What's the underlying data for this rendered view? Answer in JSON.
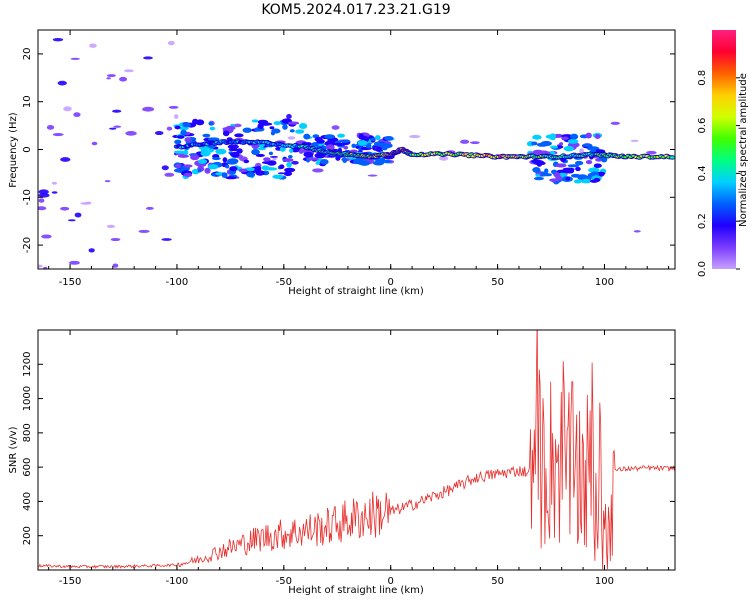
{
  "figure": {
    "title": "KOM5.2024.017.23.21.G19"
  },
  "chart_data": [
    {
      "type": "heatmap",
      "title": "KOM5.2024.017.23.21.G19",
      "xlabel": "Height of straight line (km)",
      "ylabel": "Frequency (Hz)",
      "xlim": [
        -165,
        133
      ],
      "ylim": [
        -25,
        25
      ],
      "xticks": [
        -150,
        -100,
        -50,
        0,
        50,
        100
      ],
      "yticks": [
        -20,
        -10,
        0,
        10,
        20
      ],
      "colorbar": {
        "label": "Normalized spectral amplitude",
        "range": [
          0,
          1
        ],
        "ticks": [
          "0.0",
          "0.2",
          "0.4",
          "0.6",
          "0.8"
        ],
        "colormap": [
          "#c8a0ff",
          "#7a3cff",
          "#2000ff",
          "#0060ff",
          "#00d0ff",
          "#00ff80",
          "#40ff00",
          "#d0ff00",
          "#ffd000",
          "#ff6000",
          "#ff0030",
          "#ff2080"
        ]
      },
      "ridge": [
        {
          "x": -100,
          "y": 0.5,
          "a": 0.25
        },
        {
          "x": -80,
          "y": 1.5,
          "a": 0.3
        },
        {
          "x": -60,
          "y": 1.5,
          "a": 0.3
        },
        {
          "x": -40,
          "y": 0.5,
          "a": 0.35
        },
        {
          "x": -30,
          "y": -0.5,
          "a": 0.45
        },
        {
          "x": -20,
          "y": -1,
          "a": 0.5
        },
        {
          "x": -10,
          "y": -1.5,
          "a": 0.6
        },
        {
          "x": 0,
          "y": -1,
          "a": 0.7
        },
        {
          "x": 5,
          "y": 0,
          "a": 0.8
        },
        {
          "x": 10,
          "y": -1,
          "a": 0.55
        },
        {
          "x": 30,
          "y": -1,
          "a": 0.6
        },
        {
          "x": 50,
          "y": -1.5,
          "a": 0.75
        },
        {
          "x": 65,
          "y": -1.5,
          "a": 0.55
        },
        {
          "x": 80,
          "y": -1.5,
          "a": 0.45
        },
        {
          "x": 95,
          "y": -1,
          "a": 0.4
        },
        {
          "x": 110,
          "y": -1.5,
          "a": 0.6
        },
        {
          "x": 133,
          "y": -1.5,
          "a": 0.55
        }
      ]
    },
    {
      "type": "line",
      "xlabel": "Height of straight line (km)",
      "ylabel": "SNR (v/v)",
      "xlim": [
        -165,
        133
      ],
      "ylim": [
        0,
        1400
      ],
      "xticks": [
        -150,
        -100,
        -50,
        0,
        50,
        100
      ],
      "yticks": [
        200,
        400,
        600,
        800,
        1000,
        1200
      ],
      "line_color": "#e8302e",
      "x": [
        -165,
        -150,
        -130,
        -110,
        -100,
        -90,
        -80,
        -70,
        -60,
        -50,
        -40,
        -30,
        -20,
        -10,
        0,
        10,
        20,
        30,
        40,
        50,
        60,
        65,
        70,
        75,
        80,
        85,
        90,
        95,
        100,
        105,
        110,
        120,
        133
      ],
      "values": [
        25,
        20,
        20,
        25,
        30,
        60,
        110,
        150,
        190,
        210,
        230,
        250,
        290,
        320,
        340,
        380,
        430,
        480,
        540,
        560,
        580,
        570,
        600,
        650,
        620,
        580,
        560,
        520,
        300,
        580,
        590,
        595,
        590
      ]
    }
  ]
}
